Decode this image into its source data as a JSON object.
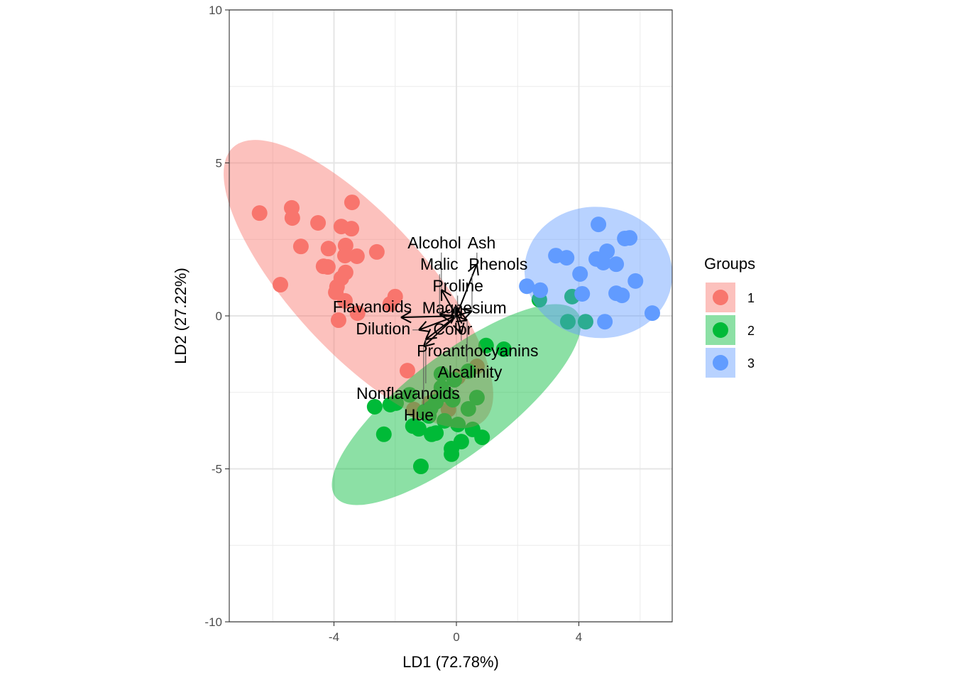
{
  "chart_data": {
    "type": "scatter",
    "title": "",
    "xlabel": "LD1 (72.78%)",
    "ylabel": "LD2 (27.22%)",
    "xlim": [
      -7.42,
      7.05
    ],
    "ylim": [
      -10,
      10
    ],
    "x_ticks": [
      -4,
      0,
      4
    ],
    "x_tick_labels": [
      "-4",
      "0",
      "4"
    ],
    "y_ticks": [
      -10,
      -5,
      0,
      5,
      10
    ],
    "y_tick_labels": [
      "-10",
      "-5",
      "0",
      "5",
      "10"
    ],
    "grid": true,
    "legend": {
      "title": "Groups",
      "placement": "right"
    },
    "series": [
      {
        "name": "1",
        "color": "#F8766D",
        "ellipse": {
          "cx": -3.2,
          "cy": 1.04,
          "rx": 6.06,
          "ry": 2.2,
          "angle": -47.5
        },
        "points": [
          [
            -6.43,
            3.36
          ],
          [
            -5.38,
            3.53
          ],
          [
            -5.36,
            3.2
          ],
          [
            -4.52,
            3.04
          ],
          [
            -3.41,
            3.71
          ],
          [
            -3.76,
            2.92
          ],
          [
            -3.43,
            2.85
          ],
          [
            -5.08,
            2.27
          ],
          [
            -4.18,
            2.2
          ],
          [
            -3.62,
            2.3
          ],
          [
            -3.25,
            1.95
          ],
          [
            -3.64,
            1.97
          ],
          [
            -2.6,
            2.09
          ],
          [
            -4.34,
            1.62
          ],
          [
            -4.2,
            1.6
          ],
          [
            -3.62,
            1.42
          ],
          [
            -3.76,
            1.23
          ],
          [
            -5.75,
            1.02
          ],
          [
            -3.9,
            0.95
          ],
          [
            -3.94,
            0.77
          ],
          [
            -3.64,
            0.49
          ],
          [
            -2.0,
            0.63
          ],
          [
            -2.16,
            0.39
          ],
          [
            -3.23,
            0.09
          ],
          [
            -3.85,
            -0.14
          ],
          [
            -1.6,
            -1.79
          ],
          [
            -1.39,
            -3.06
          ],
          [
            -0.88,
            -2.85
          ],
          [
            -1.23,
            -3.16
          ],
          [
            0.05,
            -2.0
          ],
          [
            0.67,
            -1.65
          ],
          [
            -0.26,
            -3.06
          ],
          [
            -0.53,
            -2.62
          ]
        ]
      },
      {
        "name": "2",
        "color": "#00BA38",
        "ellipse": {
          "cx": 0.0,
          "cy": -2.9,
          "rx": 4.97,
          "ry": 1.62,
          "angle": 37.4
        },
        "points": [
          [
            0.97,
            -0.97
          ],
          [
            1.55,
            -1.09
          ],
          [
            -2.67,
            -2.97
          ],
          [
            -2.16,
            -2.9
          ],
          [
            -1.97,
            -2.85
          ],
          [
            -2.37,
            -3.87
          ],
          [
            -1.53,
            -2.58
          ],
          [
            -1.42,
            -3.6
          ],
          [
            -1.23,
            -3.69
          ],
          [
            -1.16,
            -4.92
          ],
          [
            -0.81,
            -3.87
          ],
          [
            -0.67,
            -3.83
          ],
          [
            -0.49,
            -1.9
          ],
          [
            -0.49,
            -2.34
          ],
          [
            -0.39,
            -3.43
          ],
          [
            -0.3,
            -2.58
          ],
          [
            -0.16,
            -4.34
          ],
          [
            -0.16,
            -4.52
          ],
          [
            0.05,
            -3.55
          ],
          [
            0.16,
            -4.11
          ],
          [
            0.39,
            -1.81
          ],
          [
            0.39,
            -3.04
          ],
          [
            0.53,
            -3.71
          ],
          [
            0.67,
            -2.67
          ],
          [
            0.84,
            -3.97
          ],
          [
            -0.67,
            -2.81
          ],
          [
            -0.84,
            -3.02
          ],
          [
            -0.12,
            -2.74
          ],
          [
            -1.04,
            -3.13
          ],
          [
            -0.9,
            -3.27
          ],
          [
            -0.07,
            -2.09
          ],
          [
            3.78,
            0.63
          ],
          [
            2.71,
            0.53
          ],
          [
            3.64,
            -0.19
          ],
          [
            4.22,
            -0.19
          ]
        ]
      },
      {
        "name": "3",
        "color": "#619CFF",
        "ellipse": {
          "cx": 4.64,
          "cy": 1.42,
          "rx": 2.42,
          "ry": 2.14,
          "angle": -8
        },
        "points": [
          [
            4.64,
            2.99
          ],
          [
            5.5,
            2.53
          ],
          [
            5.66,
            2.55
          ],
          [
            3.25,
            1.97
          ],
          [
            3.6,
            1.9
          ],
          [
            4.92,
            2.11
          ],
          [
            4.57,
            1.86
          ],
          [
            4.8,
            1.74
          ],
          [
            5.22,
            1.69
          ],
          [
            4.04,
            1.37
          ],
          [
            5.85,
            1.14
          ],
          [
            2.3,
            0.97
          ],
          [
            2.74,
            0.84
          ],
          [
            4.11,
            0.72
          ],
          [
            5.22,
            0.74
          ],
          [
            5.41,
            0.67
          ],
          [
            4.85,
            -0.19
          ],
          [
            6.4,
            0.09
          ]
        ]
      }
    ],
    "loadings": [
      {
        "label": "Ash",
        "x": 0.67,
        "y": 1.69,
        "lx": 0.79,
        "ly": 2.04
      },
      {
        "label": "Alcohol",
        "x": -0.49,
        "y": 0.86,
        "lx": -0.6,
        "ly": 1.04
      },
      {
        "label": "Flavanoids",
        "x": -1.81,
        "y": -0.05,
        "lx": -2.62,
        "ly": -0.12
      },
      {
        "label": "Nonflavanoids",
        "x": -1.0,
        "y": -0.77,
        "lx": -1.58,
        "ly": -1.02
      },
      {
        "label": "Hue",
        "x": -1.07,
        "y": -1.0,
        "lx": -1.23,
        "ly": -1.35
      },
      {
        "label": "Dilution",
        "x": -1.23,
        "y": -0.46,
        "lx": -2.11,
        "ly": -0.58
      },
      {
        "label": "Proanthocyanins",
        "x": 0.16,
        "y": -0.58,
        "lx": 0.58,
        "ly": -0.84
      },
      {
        "label": "Phenols",
        "x": 0.51,
        "y": 0.16,
        "lx": 1.28,
        "ly": 0.26
      },
      {
        "label": "Magnesium",
        "x": 0.0,
        "y": 0.08,
        "lx": 0.05,
        "ly": 0.12
      },
      {
        "label": "Malic",
        "x": -0.55,
        "y": 0.05,
        "lx": -0.65,
        "ly": 0.12
      },
      {
        "label": "Alcalinity",
        "x": 0.35,
        "y": -0.15,
        "lx": 0.44,
        "ly": -0.23
      },
      {
        "label": "Color",
        "x": -0.05,
        "y": 0.3,
        "lx": -0.12,
        "ly": 0.35
      },
      {
        "label": "Proline",
        "x": 0.04,
        "y": 0.28,
        "lx": 0.05,
        "ly": 0.36
      }
    ]
  }
}
